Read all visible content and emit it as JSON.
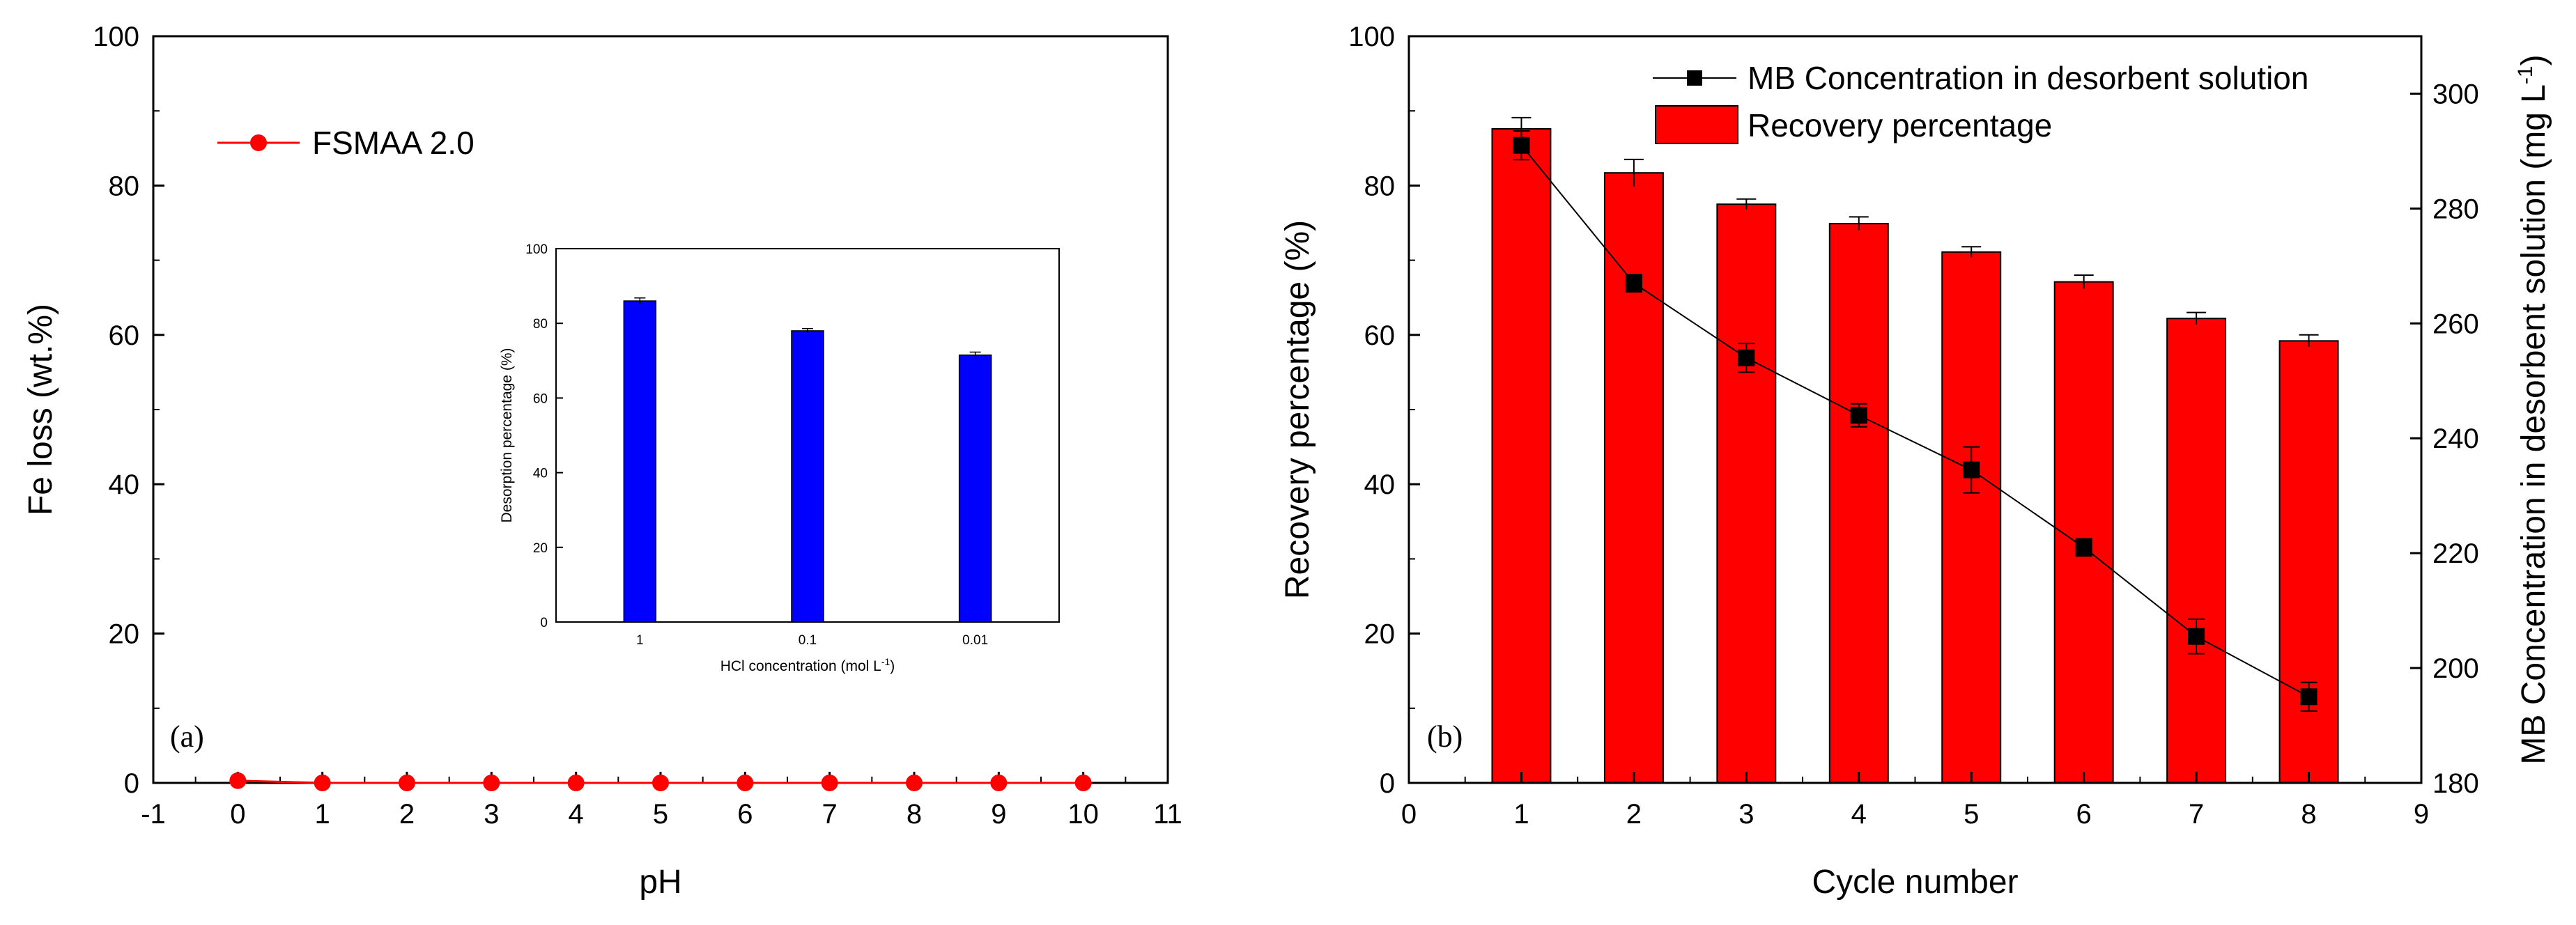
{
  "chart_data": [
    {
      "panel_label": "(a)",
      "type": "line",
      "xlabel": "pH",
      "ylabel": "Fe loss (wt.%)",
      "xlim": [
        -1,
        11
      ],
      "ylim": [
        0,
        100
      ],
      "x_ticks": [
        "-1",
        "0",
        "1",
        "2",
        "3",
        "4",
        "5",
        "6",
        "7",
        "8",
        "9",
        "10",
        "11"
      ],
      "y_ticks": [
        "0",
        "20",
        "40",
        "60",
        "80",
        "100"
      ],
      "legend_position": "top-left",
      "series": [
        {
          "name": "FSMAA 2.0",
          "color": "#ff0000",
          "marker": "circle",
          "x": [
            0,
            1,
            2,
            3,
            4,
            5,
            6,
            7,
            8,
            9,
            10
          ],
          "y": [
            0.3,
            0,
            0,
            0,
            0,
            0,
            0,
            0,
            0,
            0,
            0
          ]
        }
      ],
      "inset": {
        "type": "bar",
        "xlabel": "HCl concentration (mol L",
        "xlabel_sup": "-1",
        "xlabel_end": ")",
        "ylabel": "Desorption percentage (%)",
        "ylim": [
          0,
          100
        ],
        "y_ticks": [
          "0",
          "20",
          "40",
          "60",
          "80",
          "100"
        ],
        "categories": [
          "1",
          "0.1",
          "0.01"
        ],
        "values": [
          86,
          78,
          71.5
        ],
        "errors": [
          0.8,
          0.6,
          0.8
        ],
        "color": "#0000ff"
      }
    },
    {
      "panel_label": "(b)",
      "type": "bar",
      "xlabel": "Cycle number",
      "ylabel": "Recovery percentage (%)",
      "ylabel_right": "MB Concentration in desorbent solution (mg L",
      "ylabel_right_sup": "-1",
      "ylabel_right_end": ")",
      "xlim": [
        0,
        9
      ],
      "ylim": [
        0,
        100
      ],
      "ylim_right": [
        180,
        310
      ],
      "x_ticks": [
        "0",
        "1",
        "2",
        "3",
        "4",
        "5",
        "6",
        "7",
        "8",
        "9"
      ],
      "y_ticks": [
        "0",
        "20",
        "40",
        "60",
        "80",
        "100"
      ],
      "y_ticks_right": [
        "180",
        "200",
        "220",
        "240",
        "260",
        "280",
        "300"
      ],
      "legend_position": "top-right",
      "categories": [
        1,
        2,
        3,
        4,
        5,
        6,
        7,
        8
      ],
      "series": [
        {
          "name": "Recovery percentage",
          "kind": "bar",
          "axis": "left",
          "color": "#ff0000",
          "values": [
            87.6,
            81.7,
            77.5,
            74.9,
            71.1,
            67.1,
            62.2,
            59.2
          ],
          "errors": [
            1.5,
            1.8,
            0.7,
            0.9,
            0.7,
            0.9,
            0.8,
            0.8
          ]
        },
        {
          "name": "MB Concentration in desorbent solution",
          "kind": "line",
          "axis": "right",
          "color": "#000000",
          "marker": "square",
          "values": [
            291,
            267,
            254,
            244,
            234.5,
            221,
            205.5,
            195
          ],
          "errors": [
            2.5,
            1.5,
            2.5,
            2,
            4,
            1.5,
            3,
            2.5
          ]
        }
      ]
    }
  ]
}
